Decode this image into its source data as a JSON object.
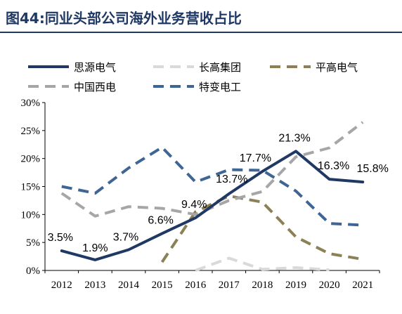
{
  "figure": {
    "title": "图44:同业头部公司海外业务营收占比"
  },
  "chart_data": {
    "type": "line",
    "categories": [
      "2012",
      "2013",
      "2014",
      "2015",
      "2016",
      "2017",
      "2018",
      "2019",
      "2020",
      "2021"
    ],
    "ylim": [
      0,
      30
    ],
    "yticks": [
      "0%",
      "5%",
      "10%",
      "15%",
      "20%",
      "25%",
      "30%"
    ],
    "series": [
      {
        "name": "思源电气",
        "color": "#1f3864",
        "dash": "solid",
        "values": [
          3.5,
          1.9,
          3.7,
          6.6,
          9.4,
          13.7,
          17.7,
          21.3,
          16.3,
          15.8
        ],
        "labels": [
          "3.5%",
          "1.9%",
          "3.7%",
          "6.6%",
          "9.4%",
          "13.7%",
          "17.7%",
          "21.3%",
          "16.3%",
          "15.8%"
        ]
      },
      {
        "name": "长高集团",
        "color": "#d9d9d9",
        "dash": "dash",
        "values": [
          null,
          null,
          null,
          null,
          0.0,
          2.2,
          0.2,
          0.5,
          0.1,
          null
        ]
      },
      {
        "name": "平高电气",
        "color": "#8c8057",
        "dash": "dash",
        "values": [
          null,
          null,
          null,
          1.5,
          10.5,
          13.3,
          12.2,
          6.0,
          3.0,
          2.0
        ]
      },
      {
        "name": "中国西电",
        "color": "#a6a6a6",
        "dash": "dash",
        "values": [
          13.8,
          9.7,
          11.4,
          11.1,
          10.0,
          12.5,
          14.1,
          20.3,
          21.9,
          26.5
        ]
      },
      {
        "name": "特变电工",
        "color": "#3f6594",
        "dash": "dash",
        "values": [
          15.0,
          13.8,
          18.3,
          22.0,
          15.8,
          18.0,
          17.9,
          14.2,
          8.4,
          8.1
        ]
      }
    ],
    "legend": {
      "placement": "top",
      "order": [
        "思源电气",
        "长高集团",
        "平高电气",
        "中国西电",
        "特变电工"
      ]
    }
  }
}
